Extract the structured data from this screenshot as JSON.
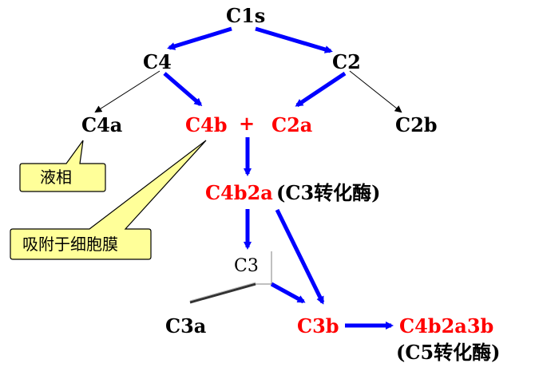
{
  "nodes": {
    "c1s": "C1s",
    "c4": "C4",
    "c2": "C2",
    "c4a": "C4a",
    "c4b": "C4b",
    "plus": "+",
    "c2a": "C2a",
    "c2b": "C2b",
    "c4b2a": "C4b2a",
    "c3_convertase": "(C3转化酶)",
    "c3": "C3",
    "c3a": "C3a",
    "c3b": "C3b",
    "c4b2a3b": "C4b2a3b",
    "c5_convertase": "(C5转化酶)"
  },
  "callouts": {
    "liquid_phase": "液相",
    "membrane_adsorb": "吸附于细胞膜"
  },
  "colors": {
    "arrow": "#0000ff",
    "highlight": "#ff0000",
    "callout_fill": "#ffff99"
  }
}
